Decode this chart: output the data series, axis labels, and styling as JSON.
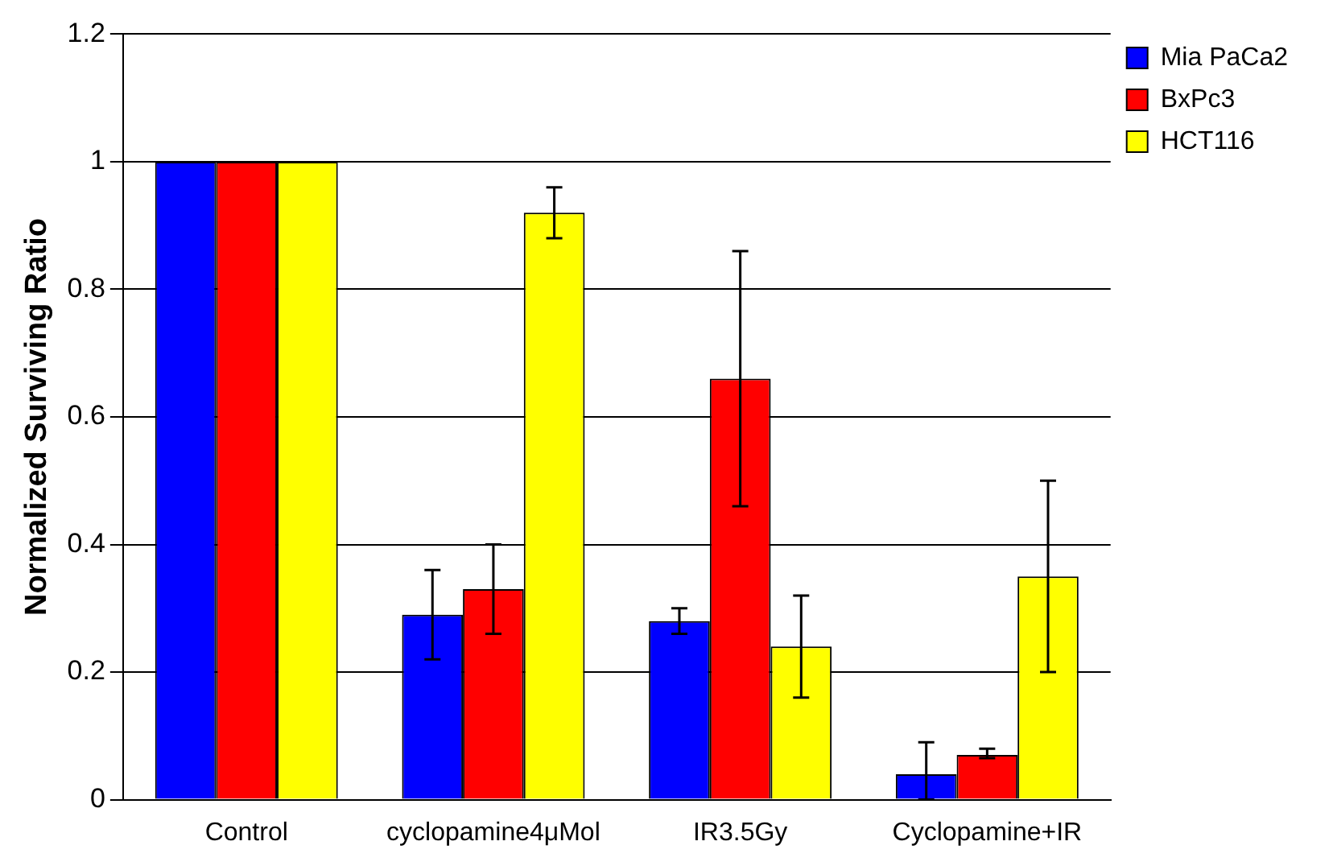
{
  "chart_data": {
    "type": "bar",
    "ylabel": "Normalized Surviving Ratio",
    "categories": [
      "Control",
      "cyclopamine4μMol",
      "IR3.5Gy",
      "Cyclopamine+IR"
    ],
    "series": [
      {
        "name": "Mia PaCa2",
        "color": "#0000ff",
        "values": [
          1,
          0.29,
          0.28,
          0.04
        ],
        "errors": [
          null,
          [
            0.22,
            0.36
          ],
          [
            0.26,
            0.3
          ],
          [
            0,
            0.09
          ]
        ]
      },
      {
        "name": "BxPc3",
        "color": "#ff0000",
        "values": [
          1,
          0.33,
          0.66,
          0.07
        ],
        "errors": [
          null,
          [
            0.26,
            0.4
          ],
          [
            0.46,
            0.86
          ],
          [
            0.065,
            0.08
          ]
        ]
      },
      {
        "name": "HCT116",
        "color": "#ffff00",
        "values": [
          1,
          0.92,
          0.24,
          0.35
        ],
        "errors": [
          null,
          [
            0.88,
            0.96
          ],
          [
            0.16,
            0.32
          ],
          [
            0.2,
            0.5
          ]
        ]
      }
    ],
    "ylim": [
      0,
      1.2
    ],
    "yticks": [
      0,
      0.2,
      0.4,
      0.6,
      0.8,
      1,
      1.2
    ],
    "grid": "y",
    "legend": "top right"
  }
}
